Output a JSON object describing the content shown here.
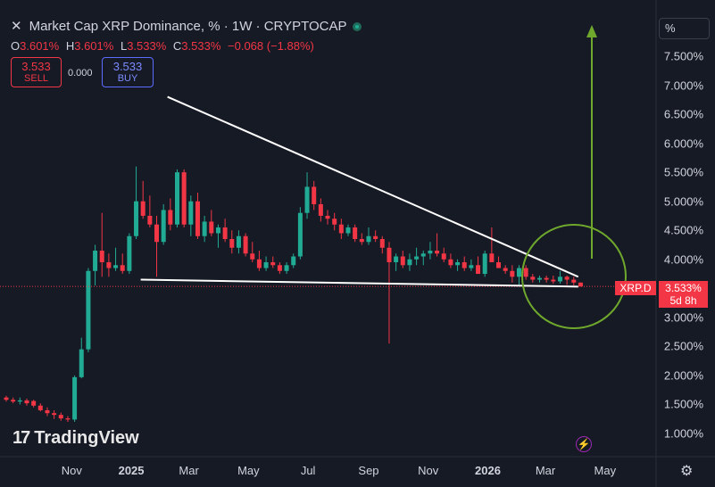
{
  "header": {
    "close_glyph": "✕",
    "title": "Market Cap XRP Dominance, % · 1W · CRYPTOCAP",
    "status_color": "#22ab94"
  },
  "ohlc": {
    "o_label": "O",
    "o_value": "3.601%",
    "h_label": "H",
    "h_value": "3.601%",
    "l_label": "L",
    "l_value": "3.533%",
    "c_label": "C",
    "c_value": "3.533%",
    "change": "−0.068 (−1.88%)"
  },
  "trade": {
    "sell_price": "3.533",
    "sell_label": "SELL",
    "spread": "0.000",
    "buy_price": "3.533",
    "buy_label": "BUY"
  },
  "scale_button": "%",
  "price_tag": {
    "symbol": "XRP.D",
    "value": "3.533%",
    "countdown": "5d 8h"
  },
  "branding": {
    "logo_text": "TradingView",
    "logo_mark": "17"
  },
  "toolbar": {
    "bolt_glyph": "⚡",
    "settings_glyph": "⚙"
  },
  "colors": {
    "up": "#22ab94",
    "down": "#f23645",
    "trendline": "#ffffff",
    "annotation": "#6fa82c",
    "background": "#161a25"
  },
  "chart_data": {
    "type": "candlestick",
    "title": "Market Cap XRP Dominance, % · 1W · CRYPTOCAP",
    "y_unit": "%",
    "ylim": [
      0.7,
      7.95
    ],
    "y_ticks": [
      "7.500%",
      "7.000%",
      "6.500%",
      "6.000%",
      "5.500%",
      "5.000%",
      "4.500%",
      "4.000%",
      "3.500%",
      "3.000%",
      "2.500%",
      "2.000%",
      "1.500%",
      "1.000%"
    ],
    "x_ticks": [
      {
        "label": "Nov",
        "date": "2024-11-01",
        "bold": false
      },
      {
        "label": "2025",
        "date": "2025-01-01",
        "bold": true
      },
      {
        "label": "Mar",
        "date": "2025-03-01",
        "bold": false
      },
      {
        "label": "May",
        "date": "2025-05-01",
        "bold": false
      },
      {
        "label": "Jul",
        "date": "2025-07-01",
        "bold": false
      },
      {
        "label": "Sep",
        "date": "2025-09-01",
        "bold": false
      },
      {
        "label": "Nov",
        "date": "2025-11-01",
        "bold": false
      },
      {
        "label": "2026",
        "date": "2026-01-01",
        "bold": true
      },
      {
        "label": "Mar",
        "date": "2026-03-01",
        "bold": false
      },
      {
        "label": "May",
        "date": "2026-05-01",
        "bold": false
      }
    ],
    "candles_ohlc": [
      [
        1.62,
        1.65,
        1.55,
        1.58
      ],
      [
        1.58,
        1.62,
        1.52,
        1.55
      ],
      [
        1.55,
        1.62,
        1.5,
        1.57
      ],
      [
        1.57,
        1.6,
        1.48,
        1.52
      ],
      [
        1.56,
        1.58,
        1.45,
        1.48
      ],
      [
        1.48,
        1.52,
        1.38,
        1.4
      ],
      [
        1.4,
        1.45,
        1.3,
        1.35
      ],
      [
        1.35,
        1.4,
        1.25,
        1.32
      ],
      [
        1.32,
        1.36,
        1.22,
        1.26
      ],
      [
        1.26,
        1.3,
        1.2,
        1.24
      ],
      [
        1.24,
        2.0,
        1.2,
        1.97
      ],
      [
        1.97,
        2.65,
        1.95,
        2.45
      ],
      [
        2.45,
        3.85,
        2.4,
        3.8
      ],
      [
        3.8,
        4.25,
        3.55,
        4.15
      ],
      [
        4.15,
        4.8,
        3.7,
        3.95
      ],
      [
        3.95,
        4.1,
        3.7,
        3.85
      ],
      [
        3.85,
        4.2,
        3.8,
        3.9
      ],
      [
        3.9,
        4.1,
        3.75,
        3.8
      ],
      [
        3.8,
        4.45,
        3.75,
        4.4
      ],
      [
        4.4,
        5.6,
        4.35,
        5.0
      ],
      [
        5.0,
        5.35,
        4.7,
        4.75
      ],
      [
        4.75,
        5.1,
        4.55,
        4.6
      ],
      [
        4.6,
        4.75,
        3.7,
        4.3
      ],
      [
        4.3,
        4.95,
        4.25,
        4.85
      ],
      [
        4.85,
        5.05,
        4.5,
        4.6
      ],
      [
        4.6,
        5.55,
        4.55,
        5.5
      ],
      [
        5.5,
        5.55,
        4.55,
        4.6
      ],
      [
        4.6,
        5.1,
        4.4,
        5.0
      ],
      [
        5.0,
        5.15,
        4.35,
        4.4
      ],
      [
        4.4,
        4.75,
        4.3,
        4.65
      ],
      [
        4.65,
        4.85,
        4.4,
        4.45
      ],
      [
        4.45,
        4.6,
        4.2,
        4.55
      ],
      [
        4.55,
        4.7,
        4.3,
        4.35
      ],
      [
        4.35,
        4.5,
        4.1,
        4.2
      ],
      [
        4.2,
        4.5,
        4.1,
        4.4
      ],
      [
        4.4,
        4.45,
        4.05,
        4.1
      ],
      [
        4.1,
        4.3,
        3.95,
        4.0
      ],
      [
        4.0,
        4.15,
        3.8,
        3.85
      ],
      [
        3.85,
        4.05,
        3.8,
        3.95
      ],
      [
        3.95,
        4.05,
        3.85,
        3.9
      ],
      [
        3.9,
        3.95,
        3.75,
        3.8
      ],
      [
        3.8,
        3.95,
        3.75,
        3.9
      ],
      [
        3.9,
        4.1,
        3.85,
        4.05
      ],
      [
        4.05,
        4.9,
        4.0,
        4.8
      ],
      [
        4.8,
        5.5,
        4.7,
        5.25
      ],
      [
        5.25,
        5.35,
        4.85,
        4.95
      ],
      [
        4.95,
        5.05,
        4.65,
        4.75
      ],
      [
        4.75,
        4.85,
        4.6,
        4.7
      ],
      [
        4.7,
        4.8,
        4.5,
        4.6
      ],
      [
        4.6,
        4.7,
        4.35,
        4.45
      ],
      [
        4.45,
        4.6,
        4.4,
        4.55
      ],
      [
        4.55,
        4.6,
        4.3,
        4.35
      ],
      [
        4.35,
        4.45,
        4.25,
        4.3
      ],
      [
        4.3,
        4.55,
        4.25,
        4.4
      ],
      [
        4.4,
        4.5,
        4.3,
        4.35
      ],
      [
        4.35,
        4.4,
        4.1,
        4.2
      ],
      [
        4.2,
        4.3,
        2.55,
        3.95
      ],
      [
        3.95,
        4.1,
        3.8,
        4.05
      ],
      [
        4.05,
        4.15,
        3.85,
        3.9
      ],
      [
        3.9,
        4.1,
        3.8,
        4.0
      ],
      [
        4.0,
        4.2,
        3.9,
        4.05
      ],
      [
        4.05,
        4.15,
        3.9,
        4.1
      ],
      [
        4.1,
        4.3,
        4.0,
        4.15
      ],
      [
        4.15,
        4.45,
        4.05,
        4.1
      ],
      [
        4.1,
        4.2,
        3.95,
        4.0
      ],
      [
        4.0,
        4.1,
        3.85,
        3.9
      ],
      [
        3.9,
        4.0,
        3.8,
        3.95
      ],
      [
        3.95,
        4.05,
        3.8,
        3.85
      ],
      [
        3.85,
        4.0,
        3.8,
        3.9
      ],
      [
        3.9,
        4.05,
        3.75,
        3.75
      ],
      [
        3.75,
        4.15,
        3.7,
        4.1
      ],
      [
        4.1,
        4.55,
        3.95,
        3.95
      ],
      [
        3.95,
        4.05,
        3.85,
        3.85
      ],
      [
        3.85,
        3.9,
        3.75,
        3.8
      ],
      [
        3.8,
        3.9,
        3.6,
        3.7
      ],
      [
        3.7,
        3.9,
        3.55,
        3.85
      ],
      [
        3.85,
        3.9,
        3.65,
        3.7
      ],
      [
        3.7,
        3.75,
        3.6,
        3.65
      ],
      [
        3.65,
        3.72,
        3.6,
        3.68
      ],
      [
        3.68,
        3.72,
        3.6,
        3.65
      ],
      [
        3.65,
        3.72,
        3.58,
        3.62
      ],
      [
        3.62,
        3.8,
        3.58,
        3.7
      ],
      [
        3.7,
        3.72,
        3.56,
        3.65
      ],
      [
        3.65,
        3.7,
        3.55,
        3.6
      ],
      [
        3.6,
        3.6,
        3.53,
        3.533
      ]
    ],
    "last_close": 3.533,
    "annotations": {
      "upper_trendline": {
        "from": [
          4,
          6.8
        ],
        "to": [
          83,
          3.7
        ]
      },
      "lower_trendline": {
        "from": [
          4,
          3.65
        ],
        "to": [
          83,
          3.53
        ]
      },
      "circle_around_last_candles": true,
      "upward_arrow": true
    }
  }
}
